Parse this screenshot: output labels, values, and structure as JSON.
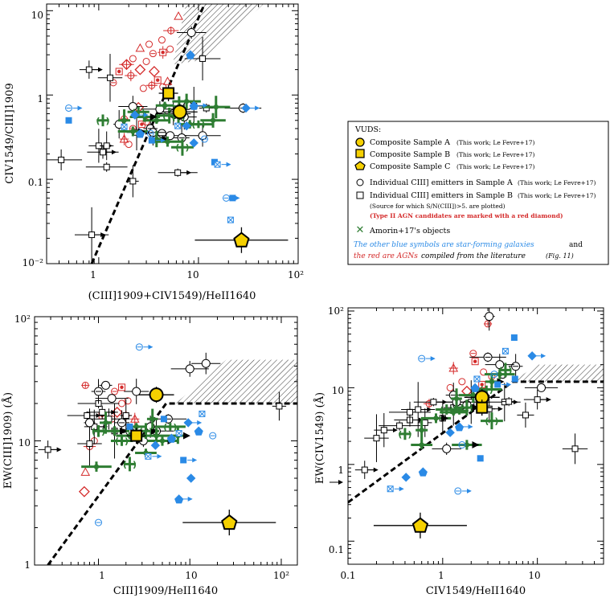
{
  "colors": {
    "black": "#000000",
    "red": "#d42a2a",
    "blue": "#2a8ae6",
    "green": "#2e7d32",
    "yellow": "#f5d000"
  },
  "legend": {
    "header": "VUDS:",
    "compA": "Composite Sample A",
    "compA_ref": "(This work; Le Fevre+17)",
    "compB": "Composite Sample B",
    "compB_ref": "(This work; Le Fevre+17)",
    "compC": "Composite Sample C",
    "compC_ref": "(This work; Le Fevre+17)",
    "indivA": "Individual CIII] emitters in Sample A",
    "indivA_ref": "(This work; Le Fevre+17)",
    "indivB": "Individual CIII] emitters in Sample B",
    "indivB_ref": "(This work; Le Fevre+17)",
    "indivB_note": "(Source for which S/N(CIII])>5. are plotted)",
    "agn_note": "(Type II AGN candidates are marked with a red diamond)",
    "amorin": "Amorin+17's objects",
    "blue_note_a": "The other blue symbols are star-forming galaxies",
    "blue_note_b": "and",
    "red_note_a": "the red are AGNs",
    "red_note_b": "compiled from the literature",
    "red_note_c": "(Fig. 11)"
  },
  "chart_data": [
    {
      "type": "scatter",
      "id": "panel_top_left",
      "xlabel": "(CIII]1909+CIV1549)/HeII1640",
      "ylabel": "CIV1549/CIII]1909",
      "xscale": "log",
      "yscale": "log",
      "xlim": [
        0.3,
        100
      ],
      "ylim": [
        0.01,
        12
      ],
      "xticklabels": [
        "1",
        "10",
        "10²"
      ],
      "yticklabels": [
        "10⁻²",
        "0.1",
        "1",
        "10"
      ],
      "composites": [
        {
          "name": "Composite Sample A",
          "x": 6.5,
          "y": 0.63
        },
        {
          "name": "Composite Sample B",
          "x": 5.0,
          "y": 1.05
        },
        {
          "name": "Composite Sample C",
          "x": 27,
          "y": 0.019
        }
      ],
      "sample_A": [
        [
          1.6,
          0.45
        ],
        [
          3.3,
          0.4
        ],
        [
          4.3,
          0.35
        ],
        [
          5.2,
          0.33
        ],
        [
          6.8,
          0.31
        ],
        [
          7.8,
          0.75
        ],
        [
          8.5,
          5.5
        ],
        [
          28,
          0.7
        ],
        [
          2.2,
          0.73
        ],
        [
          4.1,
          0.68
        ],
        [
          5.6,
          0.6
        ],
        [
          7.2,
          0.55
        ],
        [
          11,
          0.33
        ],
        [
          3.5,
          0.36
        ]
      ],
      "sample_B": [
        [
          0.8,
          2.0
        ],
        [
          1.3,
          1.6
        ],
        [
          1.0,
          0.25
        ],
        [
          1.2,
          0.14
        ],
        [
          1.1,
          0.21
        ],
        [
          0.42,
          0.17
        ],
        [
          0.85,
          0.022
        ],
        [
          1.2,
          0.25
        ],
        [
          6.2,
          0.12
        ],
        [
          2.2,
          0.095
        ],
        [
          2.4,
          0.36
        ],
        [
          11,
          2.7
        ],
        [
          9.0,
          0.74
        ],
        [
          12,
          0.7
        ]
      ],
      "green": [
        [
          1.1,
          0.5
        ],
        [
          1.8,
          0.5
        ],
        [
          2.2,
          0.37
        ],
        [
          2.5,
          0.63
        ],
        [
          3.8,
          0.5
        ],
        [
          4.6,
          0.75
        ],
        [
          5.1,
          0.57
        ],
        [
          6.4,
          0.73
        ],
        [
          7.6,
          0.84
        ],
        [
          10,
          0.45
        ],
        [
          3.8,
          0.3
        ],
        [
          4.9,
          0.28
        ],
        [
          6.3,
          0.55
        ],
        [
          8.2,
          0.45
        ],
        [
          2.9,
          0.55
        ],
        [
          6.9,
          0.24
        ],
        [
          14,
          0.5
        ],
        [
          15,
          0.72
        ]
      ],
      "blue": [
        [
          0.5,
          0.7
        ],
        [
          0.5,
          0.5
        ],
        [
          1.8,
          0.42
        ],
        [
          2.3,
          0.58
        ],
        [
          2.6,
          0.35
        ],
        [
          3.3,
          0.35
        ],
        [
          3.4,
          0.29
        ],
        [
          6.2,
          0.43
        ],
        [
          7.6,
          0.43
        ],
        [
          9.0,
          0.75
        ],
        [
          11.5,
          0.3
        ],
        [
          14.5,
          0.16
        ],
        [
          15.5,
          0.15
        ],
        [
          9.0,
          0.27
        ],
        [
          8.3,
          3.0
        ],
        [
          19,
          0.06
        ],
        [
          22,
          0.06
        ],
        [
          21,
          0.033
        ],
        [
          30,
          0.7
        ]
      ],
      "red": [
        [
          1.8,
          0.52
        ],
        [
          2.2,
          0.4
        ],
        [
          2.7,
          0.45
        ],
        [
          3.0,
          0.48
        ],
        [
          1.8,
          0.3
        ],
        [
          2.0,
          0.26
        ],
        [
          2.5,
          0.71
        ],
        [
          2.8,
          1.2
        ],
        [
          3.4,
          1.3
        ],
        [
          3.9,
          1.5
        ],
        [
          4.4,
          1.25
        ],
        [
          4.9,
          1.45
        ],
        [
          2.1,
          1.7
        ],
        [
          2.6,
          2.0
        ],
        [
          3.0,
          2.5
        ],
        [
          3.5,
          3.1
        ],
        [
          4.4,
          3.2
        ],
        [
          5.2,
          3.5
        ],
        [
          2.6,
          3.6
        ],
        [
          3.2,
          4.0
        ],
        [
          1.9,
          2.3
        ],
        [
          2.2,
          2.7
        ],
        [
          1.4,
          1.4
        ],
        [
          1.6,
          1.9
        ],
        [
          5.3,
          5.8
        ],
        [
          6.3,
          8.6
        ],
        [
          4.3,
          4.5
        ],
        [
          3.6,
          1.9
        ]
      ]
    },
    {
      "type": "scatter",
      "id": "panel_bottom_left",
      "xlabel": "CIII]1909/HeII1640",
      "ylabel": "EW(CIII]1909) (Å)",
      "xscale": "log",
      "yscale": "log",
      "xlim": [
        0.2,
        150
      ],
      "ylim": [
        1,
        100
      ],
      "xticklabels": [
        "1",
        "10",
        "10²"
      ],
      "yticklabels": [
        "1",
        "10",
        "10²"
      ],
      "composites": [
        {
          "name": "Composite Sample A",
          "x": 4.3,
          "y": 23.5
        },
        {
          "name": "Composite Sample B",
          "x": 2.6,
          "y": 11
        },
        {
          "name": "Composite Sample C",
          "x": 27,
          "y": 2.2
        }
      ],
      "sample_A": [
        [
          0.8,
          14
        ],
        [
          1.0,
          25
        ],
        [
          1.2,
          28
        ],
        [
          1.4,
          22
        ],
        [
          1.8,
          14
        ],
        [
          2.2,
          12
        ],
        [
          3.1,
          10
        ],
        [
          5.8,
          15
        ],
        [
          15,
          42
        ],
        [
          10,
          38
        ],
        [
          4.3,
          12
        ],
        [
          2.6,
          25
        ],
        [
          3.7,
          13
        ]
      ],
      "sample_B": [
        [
          0.28,
          8.5
        ],
        [
          0.8,
          9.5
        ],
        [
          0.9,
          13
        ],
        [
          1.0,
          20
        ],
        [
          1.1,
          17
        ],
        [
          1.3,
          15
        ],
        [
          1.5,
          12
        ],
        [
          95,
          19
        ],
        [
          0.75,
          16
        ],
        [
          2.0,
          16
        ]
      ],
      "green": [
        [
          1.0,
          12
        ],
        [
          1.2,
          14
        ],
        [
          1.5,
          12
        ],
        [
          1.8,
          10
        ],
        [
          2.2,
          11
        ],
        [
          2.6,
          13
        ],
        [
          3.3,
          12
        ],
        [
          3.9,
          15
        ],
        [
          4.3,
          11
        ],
        [
          6.1,
          13
        ],
        [
          7.4,
          11
        ],
        [
          0.95,
          6.2
        ],
        [
          2.2,
          6.5
        ],
        [
          3.3,
          8.0
        ],
        [
          5.0,
          10
        ]
      ],
      "blue": [
        [
          2.8,
          57
        ],
        [
          5.2,
          15
        ],
        [
          7.6,
          11.5
        ],
        [
          9.6,
          14
        ],
        [
          12.5,
          12
        ],
        [
          17.8,
          11
        ],
        [
          8.5,
          7
        ],
        [
          13.6,
          16.5
        ],
        [
          10.3,
          5.0
        ],
        [
          7.6,
          3.4
        ],
        [
          1.0,
          2.2
        ],
        [
          2.2,
          13
        ],
        [
          3.5,
          7.5
        ],
        [
          4.2,
          9.2
        ],
        [
          6.3,
          10.5
        ]
      ],
      "red": [
        [
          0.72,
          28
        ],
        [
          1.5,
          25
        ],
        [
          1.8,
          27
        ],
        [
          2.1,
          21
        ],
        [
          2.5,
          15
        ],
        [
          1.4,
          15
        ],
        [
          1.6,
          17
        ],
        [
          1.8,
          20
        ],
        [
          2.0,
          16
        ],
        [
          1.1,
          16
        ],
        [
          0.9,
          10
        ],
        [
          0.72,
          5.6
        ],
        [
          0.8,
          9
        ],
        [
          0.7,
          3.9
        ]
      ]
    },
    {
      "type": "scatter",
      "id": "panel_bottom_right",
      "xlabel": "CIV1549/HeII1640",
      "ylabel": "EW(CIV1549) (Å)",
      "xscale": "log",
      "yscale": "log",
      "xlim": [
        0.1,
        50
      ],
      "ylim": [
        0.05,
        110
      ],
      "xticklabels": [
        "0.1",
        "1",
        "10"
      ],
      "yticklabels": [
        "0.1",
        "1",
        "10",
        "10²"
      ],
      "composites": [
        {
          "name": "Composite Sample A",
          "x": 2.6,
          "y": 7.5
        },
        {
          "name": "Composite Sample B",
          "x": 2.6,
          "y": 5.5
        },
        {
          "name": "Composite Sample C",
          "x": 0.58,
          "y": 0.16
        }
      ],
      "sample_A": [
        [
          3.1,
          85
        ],
        [
          5.9,
          19
        ],
        [
          4.3,
          15
        ],
        [
          11,
          10
        ],
        [
          1.3,
          8
        ],
        [
          1.8,
          6
        ],
        [
          1.1,
          1.6
        ],
        [
          3.0,
          25
        ],
        [
          4.0,
          20
        ],
        [
          1.4,
          6.5
        ]
      ],
      "sample_B": [
        [
          0.15,
          0.85
        ],
        [
          0.2,
          2.2
        ],
        [
          0.24,
          2.8
        ],
        [
          0.35,
          3.2
        ],
        [
          0.45,
          3.8
        ],
        [
          0.45,
          4.8
        ],
        [
          0.55,
          5.2
        ],
        [
          0.65,
          3.5
        ],
        [
          0.8,
          6.5
        ],
        [
          1.0,
          4.0
        ],
        [
          1.3,
          5.5
        ],
        [
          2.0,
          6.5
        ],
        [
          4.5,
          6.5
        ],
        [
          5.0,
          6.6
        ],
        [
          3.1,
          5.3
        ],
        [
          7.5,
          4.4
        ],
        [
          10,
          7
        ],
        [
          25,
          1.6
        ]
      ],
      "green": [
        [
          0.4,
          2.5
        ],
        [
          0.6,
          2.8
        ],
        [
          0.85,
          4.0
        ],
        [
          1.1,
          5.2
        ],
        [
          1.3,
          4.8
        ],
        [
          1.5,
          5.0
        ],
        [
          1.8,
          5.5
        ],
        [
          1.4,
          7.2
        ],
        [
          2.1,
          8.0
        ],
        [
          2.9,
          9.5
        ],
        [
          3.3,
          12
        ],
        [
          4.0,
          15
        ],
        [
          4.6,
          17
        ],
        [
          0.6,
          1.8
        ],
        [
          1.8,
          1.8
        ],
        [
          3.3,
          3.7
        ]
      ],
      "blue": [
        [
          0.6,
          24
        ],
        [
          5.7,
          45
        ],
        [
          4.6,
          30
        ],
        [
          8.8,
          26
        ],
        [
          2.2,
          10
        ],
        [
          3.5,
          15
        ],
        [
          3.8,
          11
        ],
        [
          2.3,
          13
        ],
        [
          1.2,
          2.6
        ],
        [
          1.5,
          3.1
        ],
        [
          1.6,
          1.8
        ],
        [
          2.5,
          1.2
        ],
        [
          0.28,
          0.48
        ],
        [
          0.41,
          0.68
        ],
        [
          0.62,
          0.8
        ],
        [
          1.45,
          0.45
        ],
        [
          5.8,
          13
        ]
      ],
      "red": [
        [
          3.0,
          68
        ],
        [
          2.1,
          28
        ],
        [
          2.2,
          22
        ],
        [
          2.7,
          16
        ],
        [
          1.3,
          18
        ],
        [
          1.6,
          12
        ],
        [
          1.8,
          9
        ],
        [
          1.2,
          10
        ],
        [
          0.72,
          6.2
        ],
        [
          2.6,
          11
        ],
        [
          3.3,
          14
        ]
      ]
    }
  ]
}
